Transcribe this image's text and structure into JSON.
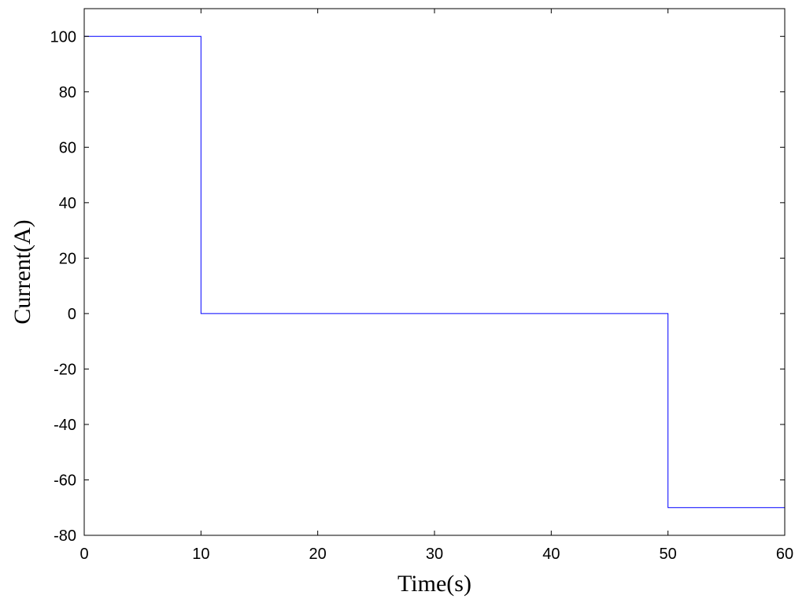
{
  "chart_data": {
    "type": "line",
    "step": true,
    "xlabel": "Time(s)",
    "ylabel": "Current(A)",
    "xlim": [
      0,
      60
    ],
    "ylim": [
      -80,
      110
    ],
    "xticks": [
      0,
      10,
      20,
      30,
      40,
      50,
      60
    ],
    "yticks": [
      -80,
      -60,
      -40,
      -20,
      0,
      20,
      40,
      60,
      80,
      100
    ],
    "grid": false,
    "series": [
      {
        "color": "#0000ff",
        "x": [
          0,
          10,
          10,
          50,
          50,
          60
        ],
        "y": [
          100,
          100,
          0,
          0,
          -70,
          -70
        ]
      }
    ]
  }
}
